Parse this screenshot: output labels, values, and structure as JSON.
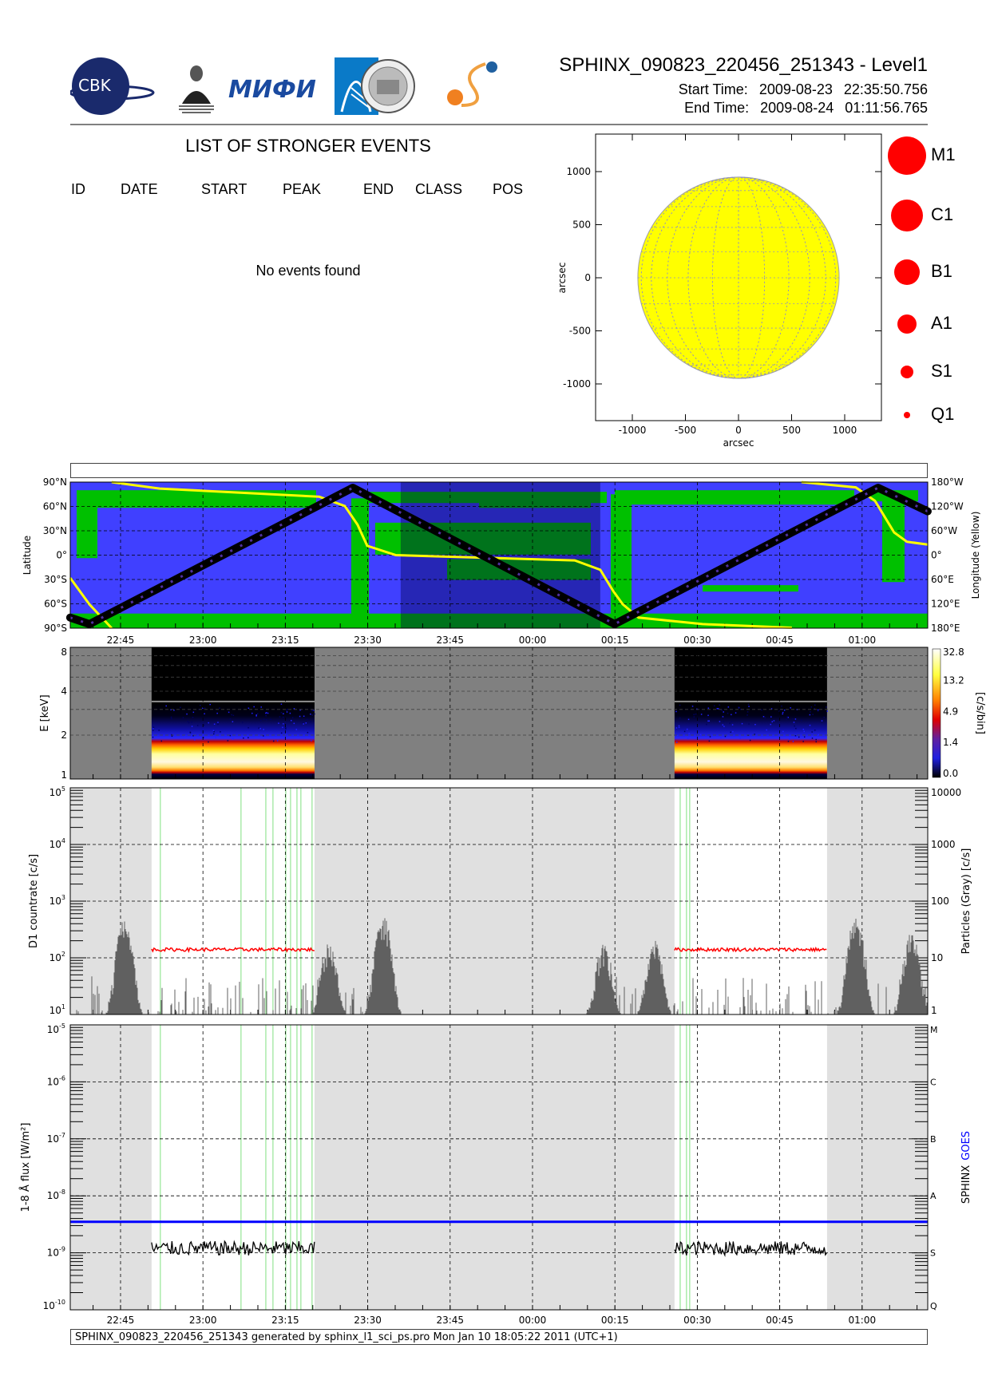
{
  "header": {
    "title": "SPHINX_090823_220456_251343 - Level1",
    "start_label": "Start Time:",
    "start_date": "2009-08-23",
    "start_time": "22:35:50.756",
    "end_label": "End Time:",
    "end_date": "2009-08-24",
    "end_time": "01:11:56.765"
  },
  "logos": {
    "cbk": "CBK PAN",
    "lebedev": "P.N.Lebedev Physical Institute of the Russian Academy of Science",
    "mifi": "МИФИ"
  },
  "events": {
    "title": "LIST OF STRONGER EVENTS",
    "columns": [
      "ID",
      "DATE",
      "START",
      "PEAK",
      "END",
      "CLASS",
      "POS"
    ],
    "rows": [],
    "empty_message": "No events found"
  },
  "footer": "SPHINX_090823_220456_251343 generated by sphinx_l1_sci_ps.pro Mon Jan 10 18:05:22 2011 (UTC+1)",
  "colors": {
    "sun_disk": "#ffff00",
    "event_marker": "#ff0000",
    "ocean": "#4040ff",
    "land": "#00c000",
    "ground_track": "#000000",
    "subsolar_longitude": "#ffff00",
    "no_data_shading": "#e0e0e0",
    "d1_countrate": "#ff0000",
    "particles": "#606060",
    "sphinx_flux": "#000000",
    "goes_flux": "#0000ff",
    "event_lines": "#80e080"
  },
  "chart_data": [
    {
      "type": "scatter",
      "id": "sun-map",
      "xlabel": "arcsec",
      "ylabel": "arcsec",
      "xlim": [
        -1350,
        1350
      ],
      "ylim": [
        -1350,
        1350
      ],
      "x_ticks": [
        "-1000",
        "-500",
        "0",
        "500",
        "1000"
      ],
      "y_ticks": [
        "1000",
        "500",
        "0",
        "-500",
        "-1000"
      ],
      "solar_radius_arcsec": 948,
      "grid": true,
      "events": [],
      "legend": [
        "M1",
        "C1",
        "B1",
        "A1",
        "S1",
        "Q1"
      ]
    },
    {
      "type": "line",
      "id": "ground-track",
      "ylabel": "Latitude",
      "y2label": "Longitude (Yellow)",
      "ylim": [
        -90,
        90
      ],
      "y2lim": [
        -180,
        180
      ],
      "y_ticks": [
        "90°N",
        "60°N",
        "30°N",
        "0°",
        "30°S",
        "60°S",
        "90°S"
      ],
      "y2_ticks": [
        "180°W",
        "120°W",
        "60°W",
        "0°",
        "60°E",
        "120°E",
        "180°E"
      ],
      "x_ticks": [
        "22:45",
        "23:00",
        "23:15",
        "23:30",
        "23:45",
        "00:00",
        "00:15",
        "00:30",
        "00:45",
        "01:00"
      ],
      "night": [
        "23:36:00",
        "00:12:20"
      ],
      "track": [
        [
          "22:35:50",
          -77
        ],
        [
          "22:39:20",
          -85
        ],
        [
          "23:27:17",
          83
        ],
        [
          "00:14:57",
          -85
        ],
        [
          "01:02:55",
          83
        ],
        [
          "01:11:56",
          54
        ]
      ],
      "subsolar_longitude_west": [
        [
          [
            "22:35:50",
            -56
          ],
          [
            "22:39:19",
            -121
          ],
          [
            "22:43:23",
            -180
          ]
        ],
        [
          [
            "22:43:23",
            180
          ],
          [
            "22:52:07",
            164
          ],
          [
            "23:21:11",
            144
          ],
          [
            "23:25:50",
            121
          ],
          [
            "23:28:09",
            75
          ],
          [
            "23:29:54",
            23
          ],
          [
            "23:35:08",
            0
          ],
          [
            "00:07:41",
            -13
          ],
          [
            "00:12:20",
            -36
          ],
          [
            "00:14:40",
            -88
          ],
          [
            "00:16:25",
            -121
          ],
          [
            "00:19:19",
            -154
          ],
          [
            "00:30:57",
            -170
          ],
          [
            "00:47:13",
            -179
          ]
        ],
        [
          [
            "00:48:58",
            180
          ],
          [
            "00:58:51",
            167
          ],
          [
            "01:02:20",
            134
          ],
          [
            "01:05:50",
            56
          ],
          [
            "01:08:09",
            33
          ],
          [
            "01:11:56",
            26
          ]
        ]
      ]
    },
    {
      "type": "heatmap",
      "id": "spectrogram",
      "ylabel": "E [keV]",
      "ylim": [
        1,
        8
      ],
      "y_scale": "log",
      "y_ticks": [
        "1",
        "2",
        "4",
        "8"
      ],
      "data_intervals": [
        [
          "22:50:39",
          "23:20:19"
        ],
        [
          "00:25:51",
          "00:53:37"
        ]
      ],
      "colorbar": {
        "label": "[c/s/bin]",
        "ticks": [
          "32.8",
          "13.2",
          "4.9",
          "1.4",
          "0.0"
        ]
      }
    },
    {
      "type": "line",
      "id": "countrate",
      "ylabel": "D1 countrate [c/s]",
      "y2label": "Particles (Gray) [c/s]",
      "ylim": [
        10,
        100000
      ],
      "y_scale": "log",
      "y_ticks": [
        {
          "base": "10",
          "exp": "1"
        },
        {
          "base": "10",
          "exp": "2"
        },
        {
          "base": "10",
          "exp": "3"
        },
        {
          "base": "10",
          "exp": "4"
        },
        {
          "base": "10",
          "exp": "5"
        }
      ],
      "y2_ticks": [
        "1",
        "10",
        "100",
        "1000",
        "10000"
      ],
      "d1_level": 140,
      "particle_peaks": [
        [
          "22:45:43",
          50
        ],
        [
          "23:22:55",
          17
        ],
        [
          "23:32:48",
          55
        ],
        [
          "00:12:55",
          16
        ],
        [
          "00:22:13",
          20
        ],
        [
          "00:58:51",
          55
        ],
        [
          "01:09:02",
          28
        ]
      ],
      "event_lines": [
        "22:52:15",
        "23:06:56",
        "23:11:27",
        "23:12:45",
        "23:15:05",
        "23:15:57",
        "23:17:07",
        "23:17:50",
        "23:19:52",
        "00:26:53",
        "00:28:02",
        "00:28:37"
      ]
    },
    {
      "type": "line",
      "id": "flux",
      "ylabel": "1-8 Å flux [W/m²]",
      "ylim": [
        1e-10,
        1e-05
      ],
      "y_scale": "log",
      "y_ticks": [
        {
          "base": "10",
          "exp": "-10"
        },
        {
          "base": "10",
          "exp": "-9"
        },
        {
          "base": "10",
          "exp": "-8"
        },
        {
          "base": "10",
          "exp": "-7"
        },
        {
          "base": "10",
          "exp": "-6"
        },
        {
          "base": "10",
          "exp": "-5"
        }
      ],
      "y2_ticks": [
        "Q",
        "S",
        "A",
        "B",
        "C",
        "M"
      ],
      "x_ticks": [
        "22:45",
        "23:00",
        "23:15",
        "23:30",
        "23:45",
        "00:00",
        "00:15",
        "00:30",
        "00:45",
        "01:00"
      ],
      "series": [
        {
          "name": "SPHINX",
          "color": "#000000",
          "level": 1.2e-09
        },
        {
          "name": "GOES",
          "color": "#0000ff",
          "level": 3.5e-09
        }
      ]
    }
  ]
}
